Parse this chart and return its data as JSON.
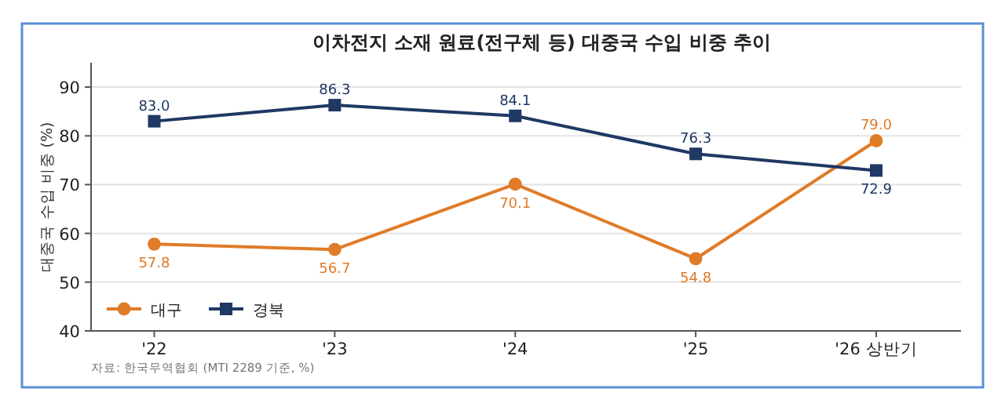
{
  "chart_data": {
    "type": "line",
    "title": "이차전지 소재 원료(전구체 등) 대중국 수입 비중 추이",
    "ylabel": "대중국 수입 비중 (%)",
    "categories": [
      "'22",
      "'23",
      "'24",
      "'25",
      "'26 상반기"
    ],
    "series": [
      {
        "name": "대구",
        "color": "#e07b28",
        "marker": "circle",
        "values": [
          57.8,
          56.7,
          70.1,
          54.8,
          79.0
        ],
        "value_labels": [
          "57.8",
          "56.7",
          "70.1",
          "54.8",
          "79.0"
        ]
      },
      {
        "name": "경북",
        "color": "#1f3864",
        "marker": "square",
        "values": [
          83.0,
          86.3,
          84.1,
          76.3,
          72.9
        ],
        "value_labels": [
          "83.0",
          "86.3",
          "84.1",
          "76.3",
          "72.9"
        ]
      }
    ],
    "ylim": [
      40,
      95
    ],
    "yticks": [
      40,
      50,
      60,
      70,
      80,
      90
    ],
    "grid": "y",
    "legend": "bottom left",
    "annotations": [
      "자료: 한국무역협회 (MTI 2289 기준, %)"
    ]
  }
}
